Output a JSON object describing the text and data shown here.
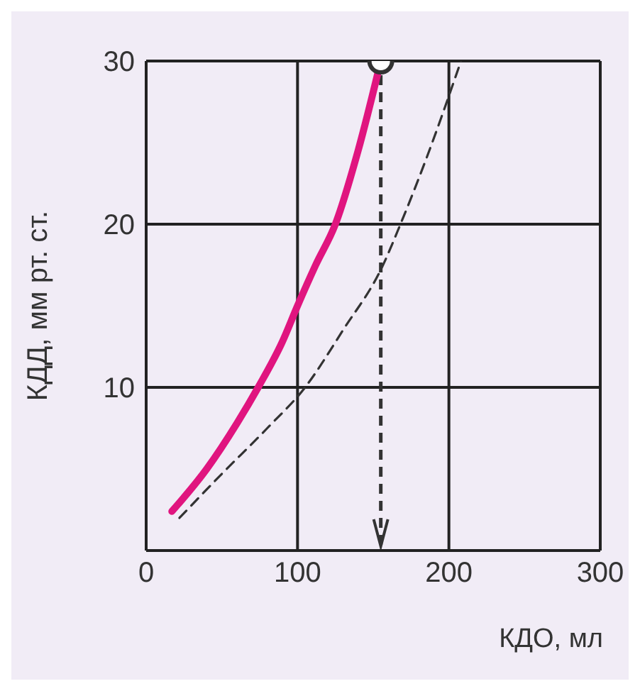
{
  "chart_data": {
    "type": "line",
    "xlabel": "КДО, мл",
    "ylabel": "КДД, мм рт. ст.",
    "xlim": [
      0,
      300
    ],
    "ylim": [
      0,
      30
    ],
    "xticks": [
      0,
      100,
      200,
      300
    ],
    "yticks": [
      10,
      20,
      30
    ],
    "grid": true,
    "series": [
      {
        "color": "#e0157f",
        "line_style": "solid",
        "marker": "none",
        "x": [
          17,
          40,
          60,
          74,
          90,
          100,
          112,
          125,
          140,
          155
        ],
        "values": [
          2.4,
          5,
          7.8,
          10,
          12.8,
          15,
          17.5,
          20,
          24.5,
          30
        ]
      },
      {
        "color": "#333333",
        "line_style": "dashed",
        "marker": "none",
        "x": [
          22,
          50,
          80,
          105,
          130,
          156,
          168,
          185,
          208
        ],
        "values": [
          2,
          4.7,
          7.5,
          10,
          13.5,
          17.4,
          20,
          24,
          30
        ]
      },
      {
        "type": "scatter",
        "color": "#333333",
        "marker": "circle",
        "x": [
          155
        ],
        "values": [
          30
        ]
      }
    ],
    "ref_lines": [
      {
        "axis": "x",
        "value": 155,
        "line_style": "dashed",
        "color": "#333333"
      }
    ]
  }
}
